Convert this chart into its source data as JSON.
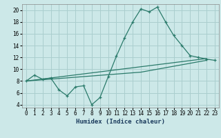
{
  "line1_x": [
    0,
    1,
    2,
    3,
    4,
    5,
    6,
    7,
    8,
    9,
    10,
    11,
    12,
    13,
    14,
    15,
    16,
    17,
    18,
    19,
    20,
    21,
    22,
    23
  ],
  "line1_y": [
    8.0,
    9.0,
    8.3,
    8.5,
    6.5,
    5.5,
    7.0,
    7.2,
    4.0,
    5.2,
    8.7,
    12.2,
    15.3,
    18.0,
    20.2,
    19.7,
    20.5,
    18.0,
    15.7,
    14.0,
    12.3,
    12.0,
    11.7,
    11.5
  ],
  "line2_x": [
    0,
    22
  ],
  "line2_y": [
    8.0,
    11.8
  ],
  "line3_x": [
    0,
    14,
    22
  ],
  "line3_y": [
    8.0,
    9.5,
    11.5
  ],
  "color": "#2a7a6a",
  "bg_color": "#cce8e8",
  "grid_color": "#aacece",
  "xlabel": "Humidex (Indice chaleur)",
  "xlim": [
    -0.5,
    23.5
  ],
  "ylim": [
    3.5,
    21.0
  ],
  "xticks": [
    0,
    1,
    2,
    3,
    4,
    5,
    6,
    7,
    8,
    9,
    10,
    11,
    12,
    13,
    14,
    15,
    16,
    17,
    18,
    19,
    20,
    21,
    22,
    23
  ],
  "yticks": [
    4,
    6,
    8,
    10,
    12,
    14,
    16,
    18,
    20
  ],
  "xlabel_fontsize": 6.5,
  "tick_fontsize": 5.5
}
